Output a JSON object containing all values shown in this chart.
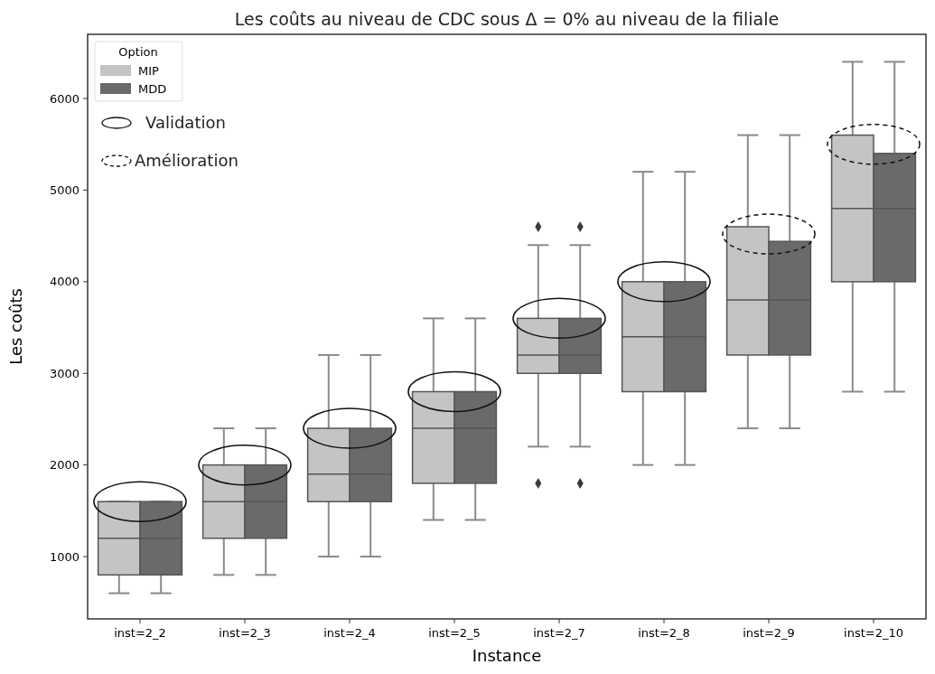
{
  "chart_data": {
    "type": "box",
    "title": "Les coûts au niveau de CDC sous Δ = 0% au niveau de la filiale",
    "xlabel": "Instance",
    "ylabel": "Les coûts",
    "legend_title": "Option",
    "legend": "top left",
    "marker": "diamond",
    "categories": [
      "inst=2_2",
      "inst=2_3",
      "inst=2_4",
      "inst=2_5",
      "inst=2_7",
      "inst=2_8",
      "inst=2_9",
      "inst=2_10"
    ],
    "ylim": [
      320,
      6700
    ],
    "yticks": [
      1000,
      2000,
      3000,
      4000,
      5000,
      6000
    ],
    "annotations": [
      "Validation",
      "Amélioration"
    ],
    "series": [
      {
        "name": "MIP",
        "color": "#c4c4c4",
        "boxes": [
          {
            "low": 600,
            "q1": 800,
            "median": 1200,
            "q3": 1600,
            "high": 1600
          },
          {
            "low": 800,
            "q1": 1200,
            "median": 1600,
            "q3": 2000,
            "high": 2400
          },
          {
            "low": 1000,
            "q1": 1600,
            "median": 1900,
            "q3": 2400,
            "high": 3200
          },
          {
            "low": 1400,
            "q1": 1800,
            "median": 2400,
            "q3": 2800,
            "high": 3600
          },
          {
            "low": 2200,
            "q1": 3000,
            "median": 3200,
            "q3": 3600,
            "high": 4400,
            "outliers": [
              4600,
              1800
            ]
          },
          {
            "low": 2000,
            "q1": 2800,
            "median": 3400,
            "q3": 4000,
            "high": 5200
          },
          {
            "low": 2400,
            "q1": 3200,
            "median": 3800,
            "q3": 4600,
            "high": 5600
          },
          {
            "low": 2800,
            "q1": 4000,
            "median": 4800,
            "q3": 5600,
            "high": 6400
          }
        ]
      },
      {
        "name": "MDD",
        "color": "#6a6a6a",
        "boxes": [
          {
            "low": 600,
            "q1": 800,
            "median": 1200,
            "q3": 1600,
            "high": 1600
          },
          {
            "low": 800,
            "q1": 1200,
            "median": 1600,
            "q3": 2000,
            "high": 2400
          },
          {
            "low": 1000,
            "q1": 1600,
            "median": 1900,
            "q3": 2400,
            "high": 3200
          },
          {
            "low": 1400,
            "q1": 1800,
            "median": 2400,
            "q3": 2800,
            "high": 3600
          },
          {
            "low": 2200,
            "q1": 3000,
            "median": 3200,
            "q3": 3600,
            "high": 4400,
            "outliers": [
              4600,
              1800
            ]
          },
          {
            "low": 2000,
            "q1": 2800,
            "median": 3400,
            "q3": 4000,
            "high": 5200
          },
          {
            "low": 2400,
            "q1": 3200,
            "median": 3800,
            "q3": 4440,
            "high": 5600
          },
          {
            "low": 2800,
            "q1": 4000,
            "median": 4800,
            "q3": 5400,
            "high": 6400
          }
        ]
      }
    ]
  }
}
